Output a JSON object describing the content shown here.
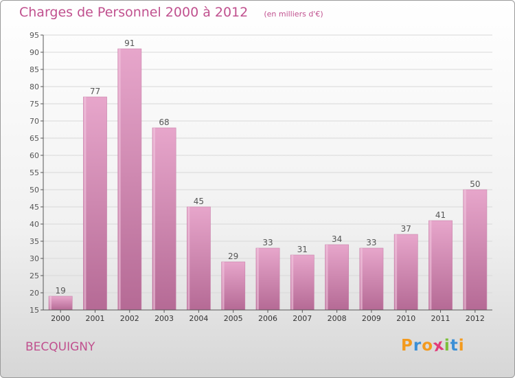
{
  "title": "Charges de Personnel 2000 à 2012",
  "unit": "(en milliers d'€)",
  "place": "BECQUIGNY",
  "logo": {
    "letters": [
      "P",
      "r",
      "o",
      "x",
      "i",
      "t",
      "i"
    ],
    "colors": [
      "#f39a1e",
      "#3b8fd6",
      "#f39a1e",
      "#e23b7a",
      "#7cbf3a",
      "#3b8fd6",
      "#f39a1e"
    ]
  },
  "colors": {
    "bar": "#d47fae",
    "text": "#c0508e",
    "grid": "#d8d8d8"
  },
  "chart_data": {
    "type": "bar",
    "title": "Charges de Personnel 2000 à 2012",
    "categories": [
      "2000",
      "2001",
      "2002",
      "2003",
      "2004",
      "2005",
      "2006",
      "2007",
      "2008",
      "2009",
      "2010",
      "2011",
      "2012"
    ],
    "values": [
      19,
      77,
      91,
      68,
      45,
      29,
      33,
      31,
      34,
      33,
      37,
      41,
      50
    ],
    "ylim": [
      15,
      95
    ],
    "yticks": [
      15,
      20,
      25,
      30,
      35,
      40,
      45,
      50,
      55,
      60,
      65,
      70,
      75,
      80,
      85,
      90,
      95
    ],
    "grid": true,
    "legend": "none"
  }
}
